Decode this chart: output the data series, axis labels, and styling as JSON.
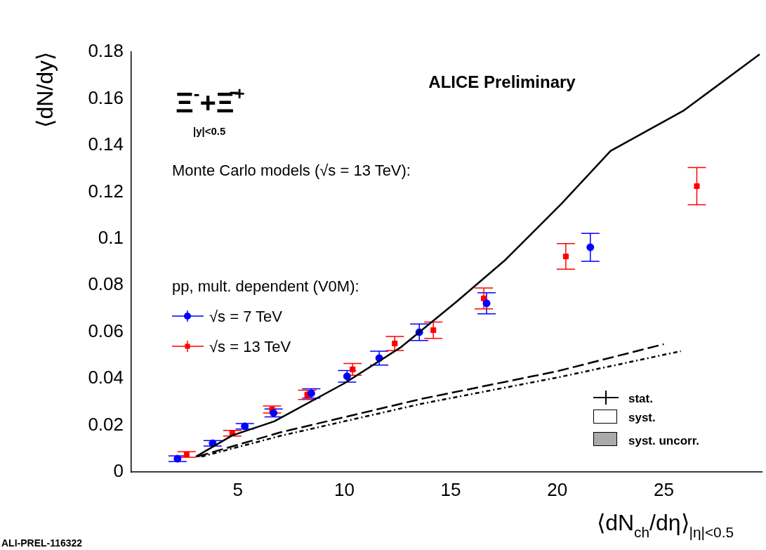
{
  "chart_data": {
    "type": "scatter",
    "xlabel": "⟨dN$_{ch}$/dη⟩$_{|η|<0.5}$",
    "ylabel": "⟨dN/dy⟩",
    "xlim": [
      0,
      29.6
    ],
    "xticks": [
      5,
      10,
      15,
      20,
      25
    ],
    "ylim": [
      0,
      0.18
    ],
    "yticks": [
      0,
      0.02,
      0.04,
      0.06,
      0.08,
      0.1,
      0.12,
      0.14,
      0.16,
      0.18
    ],
    "grid": false,
    "legend": "left",
    "annotations": [
      "ALICE Preliminary",
      "Ξ$^{-}$+Ξ̄$^{+}$",
      "|y|<0.5",
      "Monte Carlo models (√s = 13 TeV):",
      "pp, mult. dependent (V0M):",
      "stat.",
      "syst.",
      "syst. uncorr.",
      "ALI-PREL-116322"
    ],
    "series": [
      {
        "type": "line",
        "line_style": "dashed",
        "marker": "none",
        "color": "#000000",
        "x": [
          3.1,
          7,
          13.6,
          20,
          25
        ],
        "values": [
          0.0066,
          0.017,
          0.0313,
          0.0432,
          0.0548
        ]
      },
      {
        "type": "line",
        "line_style": "dotted",
        "marker": "none",
        "color": "#000000",
        "x": [
          3.3,
          7,
          13.6,
          20,
          25.8
        ],
        "values": [
          0.0066,
          0.0155,
          0.0292,
          0.0405,
          0.0518
        ]
      },
      {
        "type": "line",
        "line_style": "solid",
        "marker": "none",
        "color": "#000000",
        "x": [
          3.03,
          4.74,
          6.71,
          10,
          12.63,
          15.26,
          17.57,
          20.2,
          22.5,
          25.95,
          29.5
        ],
        "values": [
          0.0066,
          0.0157,
          0.0217,
          0.038,
          0.0533,
          0.0729,
          0.091,
          0.115,
          0.1376,
          0.155,
          0.179
        ]
      },
      {
        "type": "scatter",
        "name": "√s = 7 TeV",
        "marker": "circle",
        "color": "#0000ff",
        "x": [
          2.17,
          3.82,
          5.33,
          6.68,
          8.45,
          10.13,
          11.64,
          13.52,
          16.68,
          21.55
        ],
        "values": [
          0.0057,
          0.0123,
          0.0196,
          0.0253,
          0.0337,
          0.041,
          0.0488,
          0.0599,
          0.0723,
          0.0963
        ],
        "errors": [
          0.0012,
          0.0012,
          0.0012,
          0.0017,
          0.002,
          0.0025,
          0.003,
          0.0035,
          0.0045,
          0.006
        ]
      },
      {
        "type": "scatter",
        "name": "√s = 13 TeV",
        "marker": "square",
        "color": "#ff0000",
        "x": [
          2.6,
          4.74,
          6.61,
          8.26,
          10.39,
          12.37,
          14.18,
          16.55,
          20.4,
          26.55
        ],
        "values": [
          0.0075,
          0.0166,
          0.0268,
          0.0331,
          0.044,
          0.0551,
          0.0608,
          0.0744,
          0.0924,
          0.1225
        ],
        "errors": [
          0.0012,
          0.0012,
          0.0015,
          0.002,
          0.0025,
          0.003,
          0.0035,
          0.0045,
          0.0055,
          0.008
        ]
      }
    ]
  }
}
